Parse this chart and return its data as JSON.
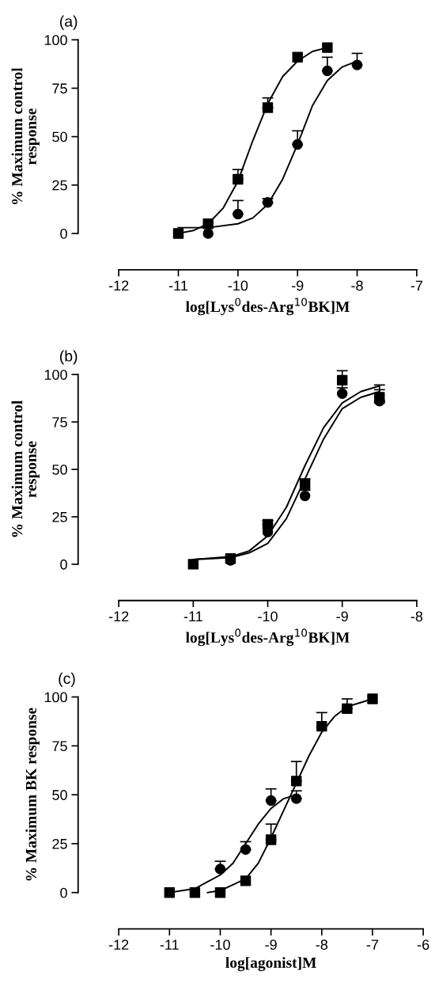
{
  "chart_data": [
    {
      "type": "scatter",
      "title": "(a)",
      "xlabel": "log[Lys$^{0}$des-Arg$^{10}$BK]M",
      "ylabel": "% Maximum control\nresponse",
      "xlim": [
        -12,
        -7
      ],
      "xticks": [
        -12,
        -11,
        -10,
        -9,
        -8,
        -7
      ],
      "ylim": [
        0,
        100
      ],
      "yticks": [
        0,
        25,
        50,
        75,
        100
      ],
      "grid": false,
      "legend": false,
      "series": [
        {
          "type": "line",
          "color": "#000000",
          "x": [
            -11,
            -10.75,
            -10.5,
            -10.25,
            -10,
            -9.75,
            -9.5,
            -9.25,
            -9,
            -8.75,
            -8.5
          ],
          "values": [
            0,
            1.5,
            5,
            13,
            27,
            48,
            67,
            81,
            89,
            94,
            96
          ]
        },
        {
          "type": "line",
          "color": "#000000",
          "x": [
            -11,
            -10.5,
            -10,
            -9.75,
            -9.5,
            -9.25,
            -9,
            -8.75,
            -8.5,
            -8.25,
            -8
          ],
          "values": [
            3,
            3,
            5,
            8,
            15,
            28,
            46,
            66,
            79,
            86,
            89
          ]
        },
        {
          "marker": "square",
          "color": "#000000",
          "x": [
            -11,
            -10.5,
            -10,
            -9.5,
            -9,
            -8.5
          ],
          "values": [
            0,
            5,
            28,
            65,
            91,
            96
          ],
          "errors": [
            null,
            null,
            [
              28,
              33
            ],
            [
              65,
              70
            ],
            null,
            null
          ]
        },
        {
          "marker": "circle",
          "color": "#000000",
          "x": [
            -10.5,
            -10,
            -9.5,
            -9,
            -8.5,
            -8
          ],
          "values": [
            0,
            10,
            16,
            46,
            84,
            87
          ],
          "errors": [
            null,
            [
              10,
              17
            ],
            [
              16,
              18
            ],
            [
              46,
              53
            ],
            [
              84,
              91
            ],
            [
              87,
              93
            ]
          ]
        }
      ]
    },
    {
      "type": "scatter",
      "title": "(b)",
      "xlabel": "log[Lys$^{0}$des-Arg$^{10}$BK]M",
      "ylabel": "% Maximum control\nresponse",
      "xlim": [
        -12,
        -8
      ],
      "xticks": [
        -12,
        -11,
        -10,
        -9,
        -8
      ],
      "ylim": [
        0,
        100
      ],
      "yticks": [
        0,
        25,
        50,
        75,
        100
      ],
      "grid": false,
      "legend": false,
      "series": [
        {
          "type": "line",
          "color": "#000000",
          "x": [
            -11,
            -10.5,
            -10.25,
            -10,
            -9.75,
            -9.5,
            -9.25,
            -9,
            -8.75,
            -8.5
          ],
          "values": [
            2.5,
            4,
            7,
            15,
            30,
            52,
            72,
            85,
            91,
            94
          ]
        },
        {
          "type": "line",
          "color": "#000000",
          "x": [
            -11,
            -10.5,
            -10.25,
            -10,
            -9.75,
            -9.5,
            -9.25,
            -9,
            -8.75,
            -8.5
          ],
          "values": [
            2.5,
            3.5,
            6,
            11,
            24,
            45,
            66,
            82,
            88,
            91
          ]
        },
        {
          "marker": "square",
          "color": "#000000",
          "x": [
            -11,
            -10.5,
            -10,
            -9.5,
            -9,
            -8.5
          ],
          "values": [
            0,
            3,
            21,
            42,
            97,
            88
          ],
          "errors": [
            null,
            null,
            [
              21,
              23
            ],
            [
              39,
              45
            ],
            [
              93,
              102
            ],
            [
              85,
              92
            ]
          ]
        },
        {
          "marker": "circle",
          "color": "#000000",
          "x": [
            -10.5,
            -10,
            -9.5,
            -9,
            -8.5
          ],
          "values": [
            2,
            17,
            36,
            90,
            86
          ],
          "errors": [
            null,
            null,
            null,
            null,
            [
              86,
              94.5
            ]
          ]
        }
      ]
    },
    {
      "type": "scatter",
      "title": "(c)",
      "xlabel": "log[agonist]M",
      "ylabel": "% Maximum BK response",
      "xlim": [
        -12,
        -6
      ],
      "xticks": [
        -12,
        -11,
        -10,
        -9,
        -8,
        -7,
        -6
      ],
      "ylim": [
        0,
        100
      ],
      "yticks": [
        0,
        25,
        50,
        75,
        100
      ],
      "grid": false,
      "legend": false,
      "series": [
        {
          "type": "line",
          "color": "#000000",
          "x": [
            -11,
            -10.5,
            -10,
            -9.75,
            -9.5,
            -9.25,
            -9,
            -8.75,
            -8.5
          ],
          "values": [
            0,
            2,
            9,
            15,
            25,
            35,
            43,
            48,
            50
          ]
        },
        {
          "type": "line",
          "color": "#000000",
          "x": [
            -10.25,
            -10,
            -9.5,
            -9.25,
            -9,
            -8.75,
            -8.5,
            -8.25,
            -8,
            -7.75,
            -7.5,
            -7.25,
            -7
          ],
          "values": [
            0,
            1,
            7,
            15,
            28,
            42,
            56,
            70,
            82,
            90,
            95,
            97,
            99
          ]
        },
        {
          "marker": "square",
          "color": "#000000",
          "x": [
            -11,
            -10.5,
            -10,
            -9.5,
            -9,
            -8.5,
            -8,
            -7.5,
            -7
          ],
          "values": [
            0,
            0,
            0,
            6,
            27,
            57,
            85,
            94,
            99
          ],
          "errors": [
            null,
            null,
            null,
            null,
            [
              27,
              35
            ],
            [
              57,
              67
            ],
            [
              85,
              92
            ],
            [
              94,
              99
            ],
            null
          ]
        },
        {
          "marker": "circle",
          "color": "#000000",
          "x": [
            -10,
            -9.5,
            -9,
            -8.5
          ],
          "values": [
            12,
            22,
            47,
            48
          ],
          "errors": [
            [
              12,
              16
            ],
            [
              22,
              26
            ],
            [
              47,
              53
            ],
            [
              48,
              52
            ]
          ]
        }
      ]
    }
  ]
}
